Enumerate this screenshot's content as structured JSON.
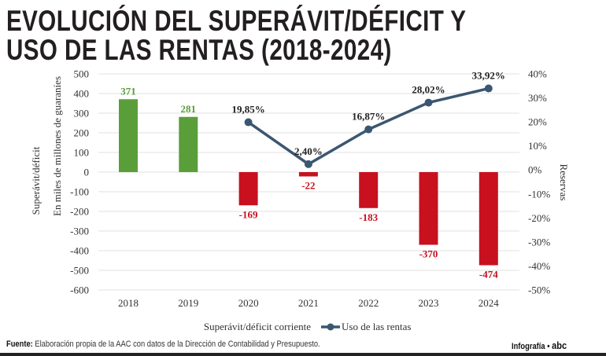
{
  "title_line1": "EVOLUCIÓN DEL SUPERÁVIT/DÉFICIT Y",
  "title_line2": "USO DE LAS RENTAS (2018-2024)",
  "chart_data": {
    "type": "bar+line",
    "categories": [
      "2018",
      "2019",
      "2020",
      "2021",
      "2022",
      "2023",
      "2024"
    ],
    "series": [
      {
        "name": "Superávit/déficit corriente",
        "type": "bar",
        "axis": "left",
        "values": [
          371,
          281,
          -169,
          -22,
          -183,
          -370,
          -474
        ],
        "labels": [
          "371",
          "281",
          "-169",
          "-22",
          "-183",
          "-370",
          "-474"
        ]
      },
      {
        "name": "Uso de las rentas",
        "type": "line",
        "axis": "right",
        "values": [
          null,
          null,
          19.85,
          2.4,
          16.87,
          28.02,
          33.92
        ],
        "labels": [
          "",
          "",
          "19,85%",
          "2,40%",
          "16,87%",
          "28,02%",
          "33,92%"
        ]
      }
    ],
    "ylabel_left": "Superávit/déficit",
    "ylabel_left_sub": "En miles de millones de guaraníes",
    "ylabel_right": "Reservas",
    "ylim_left": [
      -600,
      500
    ],
    "yticks_left": [
      "500",
      "400",
      "300",
      "200",
      "100",
      "0",
      "-100",
      "-200",
      "-300",
      "-400",
      "-500",
      "-600"
    ],
    "ylim_right": [
      -50,
      40
    ],
    "yticks_right": [
      "40%",
      "30%",
      "20%",
      "10%",
      "0%",
      "-10%",
      "-20%",
      "-30%",
      "-40%",
      "-50%"
    ],
    "grid": true,
    "legend": "bottom",
    "colors": {
      "positive": "#5a9e3a",
      "negative": "#c8101f",
      "line": "#3b5670",
      "label_pos": "#5a9e3a",
      "label_neg": "#c8101f"
    }
  },
  "footer": {
    "source_label": "Fuente:",
    "source_text": " Elaboración propia de la AAC con datos de la Dirección de Contabilidad y Presupuesto.",
    "credit": "Infografía •",
    "logo": "abc"
  }
}
